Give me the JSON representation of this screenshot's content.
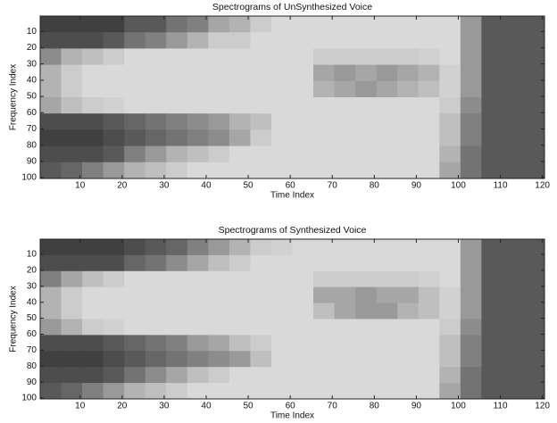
{
  "chart_data": [
    {
      "type": "heatmap",
      "title": "Spectrograms of UnSynthesized Voice",
      "x_label": "Time Index",
      "y_label": "Frequency Index",
      "xlim": [
        0.5,
        120.5
      ],
      "ylim": [
        0.5,
        100.5
      ],
      "y_reversed": true,
      "xticks": [
        10,
        20,
        30,
        40,
        50,
        60,
        70,
        80,
        90,
        100,
        110,
        120
      ],
      "yticks": [
        10,
        20,
        30,
        40,
        50,
        60,
        70,
        80,
        90,
        100
      ],
      "colormap": "gray",
      "z": [
        [
          0.25,
          0.25,
          0.25,
          0.25,
          0.35,
          0.35,
          0.45,
          0.5,
          0.65,
          0.7,
          0.8,
          0.85,
          0.85,
          0.85,
          0.85,
          0.85,
          0.85,
          0.85,
          0.85,
          0.85,
          0.6,
          0.35,
          0.35,
          0.35
        ],
        [
          0.3,
          0.3,
          0.3,
          0.35,
          0.45,
          0.5,
          0.6,
          0.7,
          0.8,
          0.8,
          0.85,
          0.85,
          0.85,
          0.85,
          0.85,
          0.85,
          0.85,
          0.85,
          0.85,
          0.85,
          0.6,
          0.35,
          0.35,
          0.35
        ],
        [
          0.55,
          0.7,
          0.75,
          0.8,
          0.85,
          0.85,
          0.85,
          0.85,
          0.85,
          0.85,
          0.85,
          0.85,
          0.85,
          0.8,
          0.8,
          0.8,
          0.8,
          0.8,
          0.82,
          0.85,
          0.6,
          0.35,
          0.35,
          0.35
        ],
        [
          0.7,
          0.8,
          0.85,
          0.85,
          0.85,
          0.85,
          0.85,
          0.85,
          0.85,
          0.85,
          0.85,
          0.85,
          0.85,
          0.65,
          0.6,
          0.65,
          0.6,
          0.65,
          0.7,
          0.82,
          0.6,
          0.35,
          0.35,
          0.35
        ],
        [
          0.7,
          0.8,
          0.85,
          0.85,
          0.85,
          0.85,
          0.85,
          0.85,
          0.85,
          0.85,
          0.85,
          0.85,
          0.85,
          0.7,
          0.65,
          0.6,
          0.65,
          0.7,
          0.75,
          0.82,
          0.6,
          0.35,
          0.35,
          0.35
        ],
        [
          0.65,
          0.75,
          0.8,
          0.82,
          0.85,
          0.85,
          0.85,
          0.85,
          0.85,
          0.85,
          0.85,
          0.85,
          0.85,
          0.85,
          0.85,
          0.85,
          0.85,
          0.85,
          0.85,
          0.8,
          0.55,
          0.35,
          0.35,
          0.35
        ],
        [
          0.3,
          0.3,
          0.3,
          0.35,
          0.4,
          0.45,
          0.5,
          0.55,
          0.6,
          0.7,
          0.75,
          0.85,
          0.85,
          0.85,
          0.85,
          0.85,
          0.85,
          0.85,
          0.85,
          0.75,
          0.5,
          0.35,
          0.35,
          0.35
        ],
        [
          0.25,
          0.25,
          0.25,
          0.3,
          0.35,
          0.4,
          0.45,
          0.5,
          0.55,
          0.65,
          0.8,
          0.85,
          0.85,
          0.85,
          0.85,
          0.85,
          0.85,
          0.85,
          0.85,
          0.75,
          0.5,
          0.35,
          0.35,
          0.35
        ],
        [
          0.3,
          0.3,
          0.3,
          0.35,
          0.5,
          0.6,
          0.7,
          0.75,
          0.8,
          0.85,
          0.85,
          0.85,
          0.85,
          0.85,
          0.85,
          0.85,
          0.85,
          0.85,
          0.85,
          0.7,
          0.45,
          0.35,
          0.35,
          0.35
        ],
        [
          0.35,
          0.4,
          0.5,
          0.6,
          0.7,
          0.75,
          0.8,
          0.85,
          0.85,
          0.85,
          0.85,
          0.85,
          0.85,
          0.85,
          0.85,
          0.85,
          0.85,
          0.85,
          0.85,
          0.65,
          0.45,
          0.35,
          0.35,
          0.35
        ]
      ]
    },
    {
      "type": "heatmap",
      "title": "Spectrograms of Synthesized Voice",
      "x_label": "Time Index",
      "y_label": "Frequency Index",
      "xlim": [
        0.5,
        120.5
      ],
      "ylim": [
        0.5,
        100.5
      ],
      "y_reversed": true,
      "xticks": [
        10,
        20,
        30,
        40,
        50,
        60,
        70,
        80,
        90,
        100,
        110,
        120
      ],
      "yticks": [
        10,
        20,
        30,
        40,
        50,
        60,
        70,
        80,
        90,
        100
      ],
      "colormap": "gray",
      "z": [
        [
          0.25,
          0.25,
          0.25,
          0.25,
          0.3,
          0.35,
          0.4,
          0.5,
          0.6,
          0.7,
          0.8,
          0.82,
          0.85,
          0.85,
          0.85,
          0.85,
          0.85,
          0.85,
          0.85,
          0.85,
          0.6,
          0.35,
          0.35,
          0.35
        ],
        [
          0.3,
          0.3,
          0.3,
          0.3,
          0.4,
          0.45,
          0.55,
          0.65,
          0.75,
          0.8,
          0.85,
          0.85,
          0.85,
          0.85,
          0.85,
          0.85,
          0.85,
          0.85,
          0.85,
          0.85,
          0.6,
          0.35,
          0.35,
          0.35
        ],
        [
          0.5,
          0.65,
          0.75,
          0.8,
          0.85,
          0.85,
          0.85,
          0.85,
          0.85,
          0.85,
          0.85,
          0.85,
          0.85,
          0.8,
          0.8,
          0.8,
          0.8,
          0.8,
          0.82,
          0.85,
          0.6,
          0.35,
          0.35,
          0.35
        ],
        [
          0.7,
          0.8,
          0.85,
          0.85,
          0.85,
          0.85,
          0.85,
          0.85,
          0.85,
          0.85,
          0.85,
          0.85,
          0.85,
          0.65,
          0.65,
          0.6,
          0.65,
          0.65,
          0.75,
          0.82,
          0.6,
          0.35,
          0.35,
          0.35
        ],
        [
          0.7,
          0.8,
          0.85,
          0.85,
          0.85,
          0.85,
          0.85,
          0.85,
          0.85,
          0.85,
          0.85,
          0.85,
          0.85,
          0.75,
          0.65,
          0.6,
          0.6,
          0.7,
          0.75,
          0.82,
          0.6,
          0.35,
          0.35,
          0.35
        ],
        [
          0.6,
          0.7,
          0.8,
          0.82,
          0.85,
          0.85,
          0.85,
          0.85,
          0.85,
          0.85,
          0.85,
          0.85,
          0.85,
          0.85,
          0.85,
          0.85,
          0.85,
          0.85,
          0.85,
          0.8,
          0.55,
          0.35,
          0.35,
          0.35
        ],
        [
          0.3,
          0.3,
          0.3,
          0.35,
          0.4,
          0.45,
          0.5,
          0.6,
          0.65,
          0.75,
          0.8,
          0.85,
          0.85,
          0.85,
          0.85,
          0.85,
          0.85,
          0.85,
          0.85,
          0.75,
          0.5,
          0.35,
          0.35,
          0.35
        ],
        [
          0.25,
          0.25,
          0.25,
          0.3,
          0.35,
          0.4,
          0.45,
          0.5,
          0.55,
          0.6,
          0.75,
          0.85,
          0.85,
          0.85,
          0.85,
          0.85,
          0.85,
          0.85,
          0.85,
          0.75,
          0.5,
          0.35,
          0.35,
          0.35
        ],
        [
          0.3,
          0.3,
          0.3,
          0.35,
          0.45,
          0.55,
          0.65,
          0.75,
          0.8,
          0.85,
          0.85,
          0.85,
          0.85,
          0.85,
          0.85,
          0.85,
          0.85,
          0.85,
          0.85,
          0.7,
          0.45,
          0.35,
          0.35,
          0.35
        ],
        [
          0.35,
          0.4,
          0.5,
          0.6,
          0.7,
          0.75,
          0.8,
          0.85,
          0.85,
          0.85,
          0.85,
          0.85,
          0.85,
          0.85,
          0.85,
          0.85,
          0.85,
          0.85,
          0.85,
          0.65,
          0.45,
          0.35,
          0.35,
          0.35
        ]
      ]
    }
  ]
}
